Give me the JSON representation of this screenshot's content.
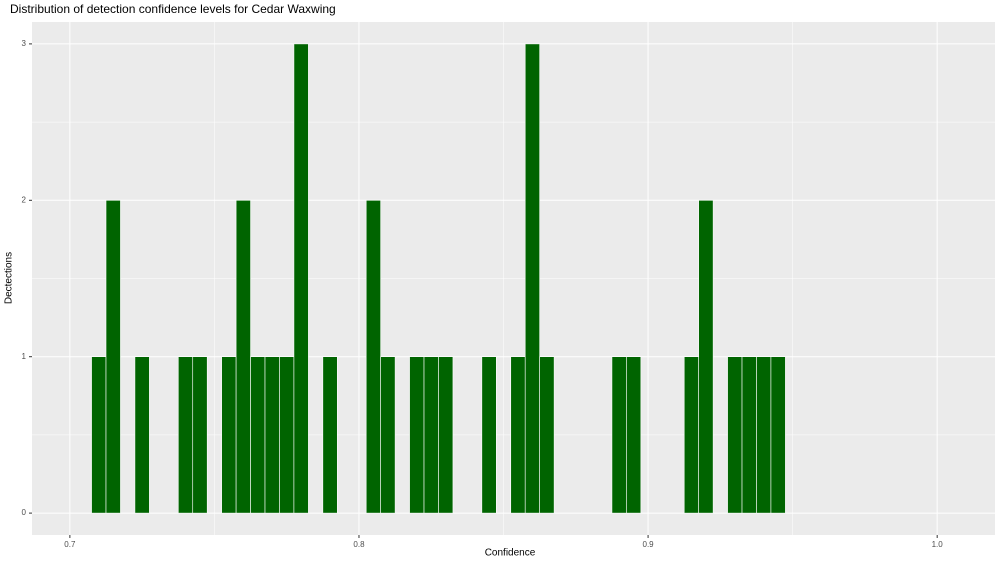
{
  "chart_data": {
    "type": "histogram",
    "title": "Distribution of detection confidence levels for Cedar Waxwing",
    "x_label": "Confidence",
    "y_label": "Dectections",
    "bins": [
      0.7075,
      0.7125,
      0.7175,
      0.7225,
      0.7275,
      0.7325,
      0.7375,
      0.7425,
      0.7475,
      0.7525,
      0.7575,
      0.7625,
      0.7675,
      0.7725,
      0.7775,
      0.7825,
      0.7875,
      0.7925,
      0.7975,
      0.8025,
      0.8075,
      0.8125,
      0.8175,
      0.8225,
      0.8275,
      0.8325,
      0.8375,
      0.8425,
      0.8475,
      0.8525,
      0.8575,
      0.8625,
      0.8675,
      0.8725,
      0.8775,
      0.8825,
      0.8875,
      0.8925,
      0.8975,
      0.9025,
      0.9075,
      0.9125,
      0.9175,
      0.9225,
      0.9275,
      0.9325,
      0.9375,
      0.9425,
      0.9475
    ],
    "values": [
      1,
      2,
      0,
      1,
      0,
      0,
      1,
      1,
      0,
      1,
      2,
      1,
      1,
      1,
      3,
      0,
      1,
      0,
      0,
      2,
      1,
      0,
      1,
      1,
      1,
      0,
      0,
      1,
      0,
      1,
      3,
      1,
      0,
      0,
      0,
      0,
      1,
      1,
      0,
      0,
      0,
      1,
      2,
      0,
      1,
      1,
      1,
      1
    ],
    "color": "#006400",
    "xlim": [
      0.6869,
      1.02
    ],
    "ylim": [
      -0.14,
      3.14
    ],
    "xticks": [
      0.7,
      0.8,
      0.9,
      {
        "value": 1,
        "label": "1.0"
      }
    ],
    "yticks": [
      0,
      1,
      2,
      3
    ],
    "grid": true
  }
}
